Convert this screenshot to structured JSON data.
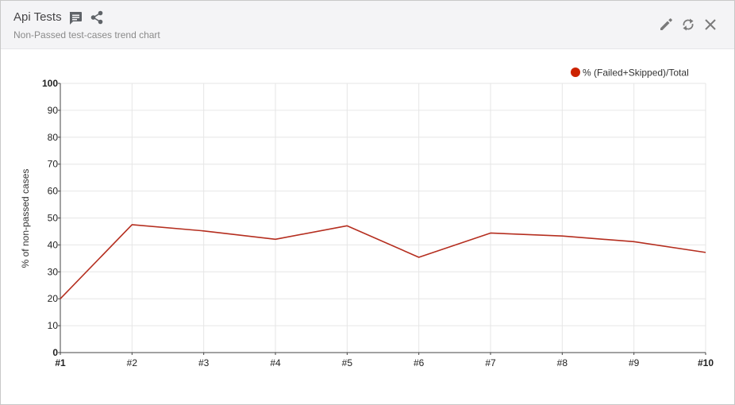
{
  "widget": {
    "title": "Api Tests",
    "subtitle": "Non-Passed test-cases trend chart",
    "icons": [
      "comment-icon",
      "share-icon",
      "edit-icon",
      "refresh-icon",
      "close-icon"
    ]
  },
  "colors": {
    "series": "#b52e1f",
    "legend_dot": "#cc2200",
    "grid": "#e6e6e6",
    "header_bg": "#f4f4f6"
  },
  "chart_data": {
    "type": "line",
    "title": "",
    "xlabel": "",
    "ylabel": "% of non-passed cases",
    "categories": [
      "#1",
      "#2",
      "#3",
      "#4",
      "#5",
      "#6",
      "#7",
      "#8",
      "#9",
      "#10"
    ],
    "series": [
      {
        "name": "% (Failed+Skipped)/Total",
        "values": [
          20,
          47.5,
          45.2,
          42.1,
          47.1,
          35.4,
          44.4,
          43.3,
          41.2,
          37.2
        ]
      }
    ],
    "ylim": [
      0,
      100
    ],
    "yticks": [
      0,
      10,
      20,
      30,
      40,
      50,
      60,
      70,
      80,
      90,
      100
    ],
    "grid": true,
    "legend_position": "top-right"
  }
}
